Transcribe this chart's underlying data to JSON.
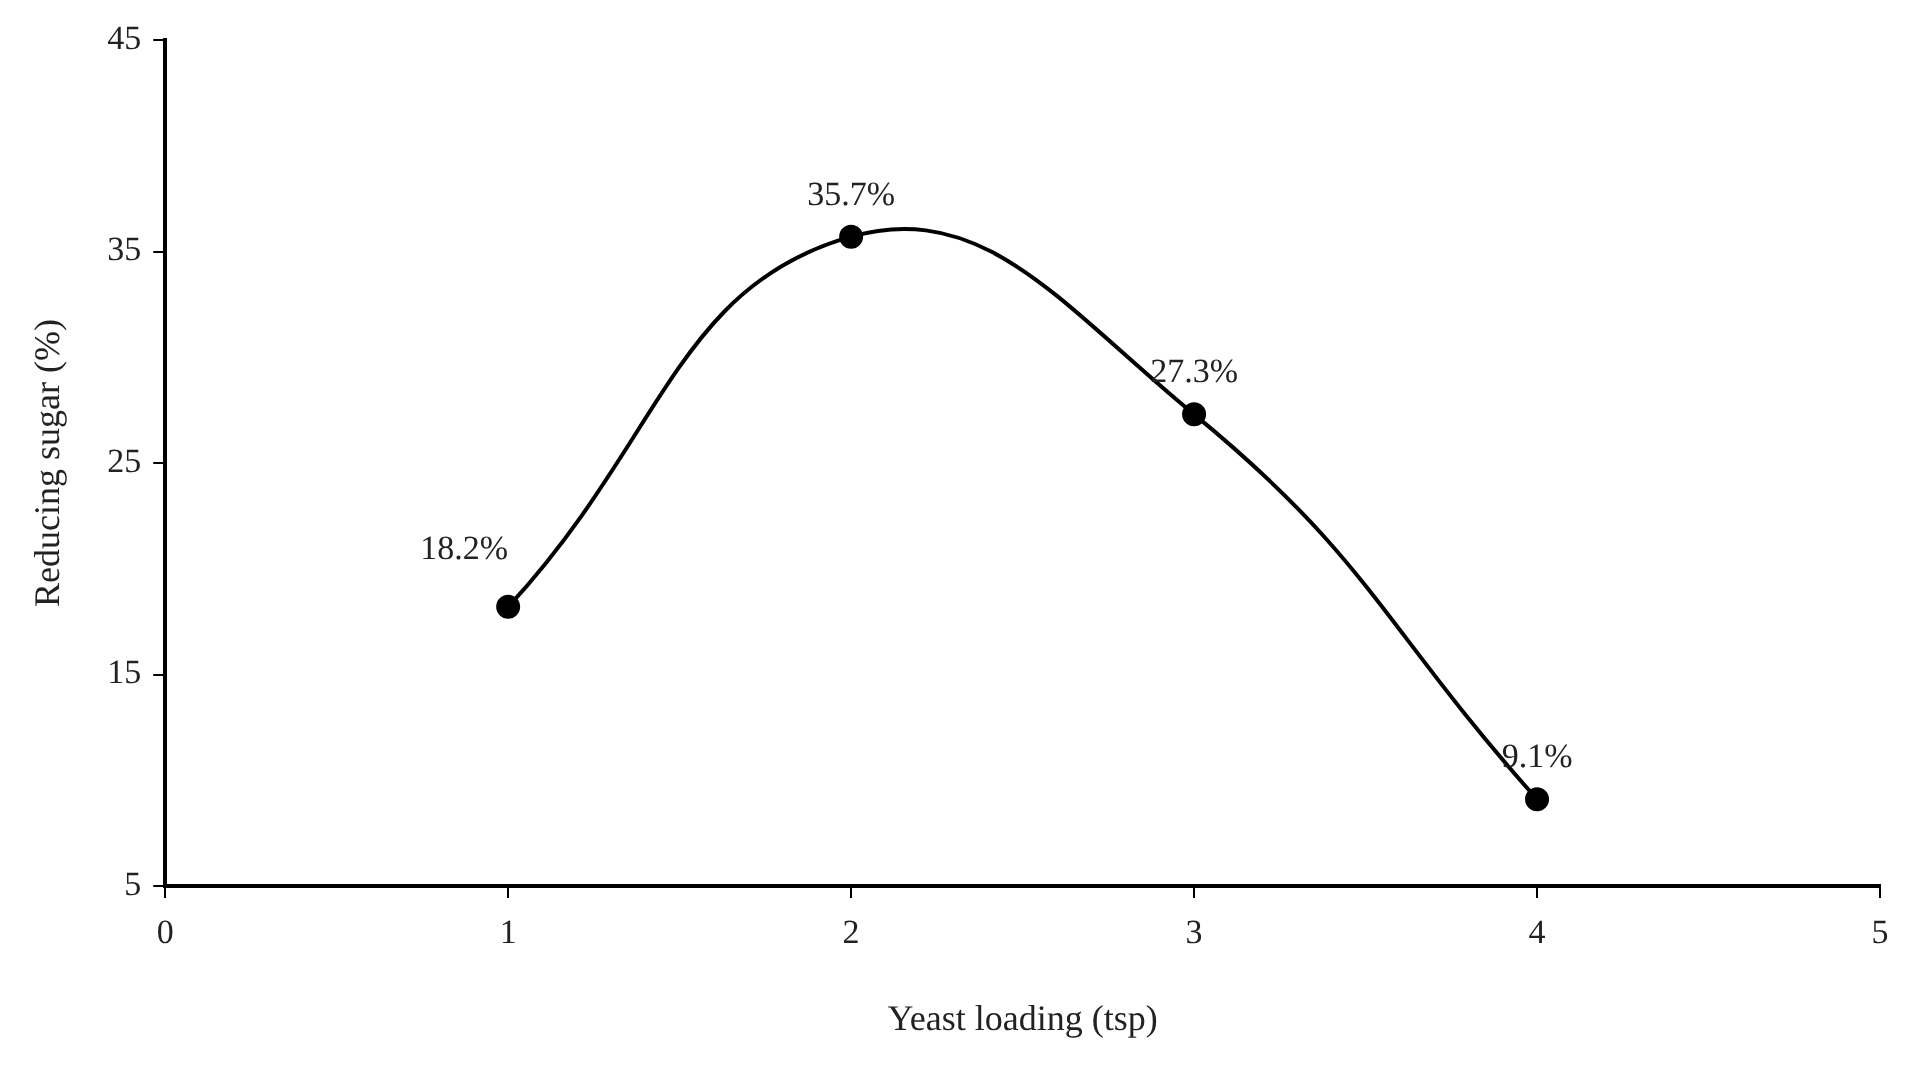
{
  "chart_data": {
    "type": "line",
    "xlabel": "Yeast loading (tsp)",
    "ylabel": "Reducing sugar (%)",
    "x": [
      1,
      2,
      3,
      4
    ],
    "series": [
      {
        "color": "#000000",
        "values": [
          18.2,
          35.7,
          27.3,
          9.1
        ],
        "value_labels": [
          "18.2%",
          "35.7%",
          "27.3%",
          "9.1%"
        ]
      }
    ],
    "xlim": [
      0,
      5
    ],
    "xticks": [
      0,
      1,
      2,
      3,
      4,
      5
    ],
    "ylim": [
      5,
      45
    ],
    "yticks": [
      5,
      15,
      25,
      35,
      45
    ],
    "grid": false,
    "legend": false,
    "marker": "circle",
    "line_style": "solid"
  }
}
